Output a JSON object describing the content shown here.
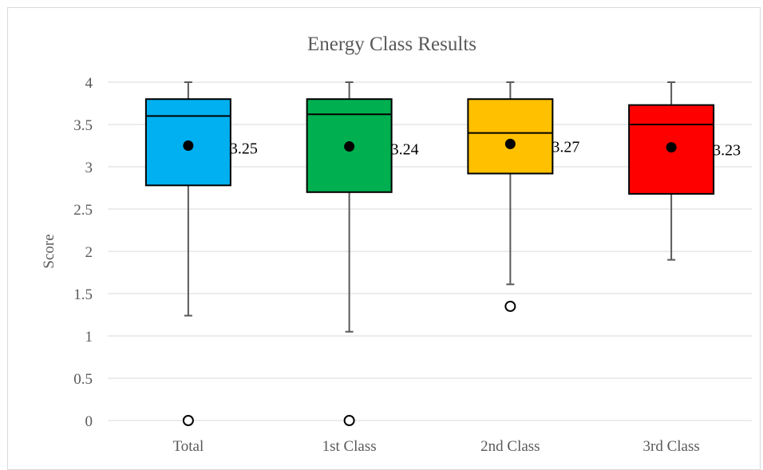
{
  "chart_data": {
    "type": "boxplot",
    "title": "Energy Class Results",
    "xlabel": "",
    "ylabel": "Score",
    "ylim": [
      0,
      4
    ],
    "yticks": [
      0,
      0.5,
      1,
      1.5,
      2,
      2.5,
      3,
      3.5,
      4
    ],
    "ytick_labels": [
      "0",
      "0.5",
      "1",
      "1.5",
      "2",
      "2.5",
      "3",
      "3.5",
      "4"
    ],
    "grid": true,
    "legend": "none",
    "categories": [
      "Total",
      "1st Class",
      "2nd Class",
      "3rd Class"
    ],
    "boxes": [
      {
        "category": "Total",
        "color": "#00B0F0",
        "min": 1.24,
        "q1": 2.78,
        "median": 3.6,
        "q3": 3.8,
        "max": 4,
        "mean": 3.25,
        "mean_label": "3.25",
        "outliers": [
          0
        ]
      },
      {
        "category": "1st Class",
        "color": "#00B050",
        "min": 1.05,
        "q1": 2.7,
        "median": 3.62,
        "q3": 3.8,
        "max": 4,
        "mean": 3.24,
        "mean_label": "3.24",
        "outliers": [
          0
        ]
      },
      {
        "category": "2nd Class",
        "color": "#FFC000",
        "min": 1.61,
        "q1": 2.92,
        "median": 3.4,
        "q3": 3.8,
        "max": 4,
        "mean": 3.27,
        "mean_label": "3.27",
        "outliers": [
          1.35
        ]
      },
      {
        "category": "3rd Class",
        "color": "#FF0000",
        "min": 1.9,
        "q1": 2.68,
        "median": 3.5,
        "q3": 3.73,
        "max": 4,
        "mean": 3.23,
        "mean_label": "3.23",
        "outliers": []
      }
    ]
  }
}
